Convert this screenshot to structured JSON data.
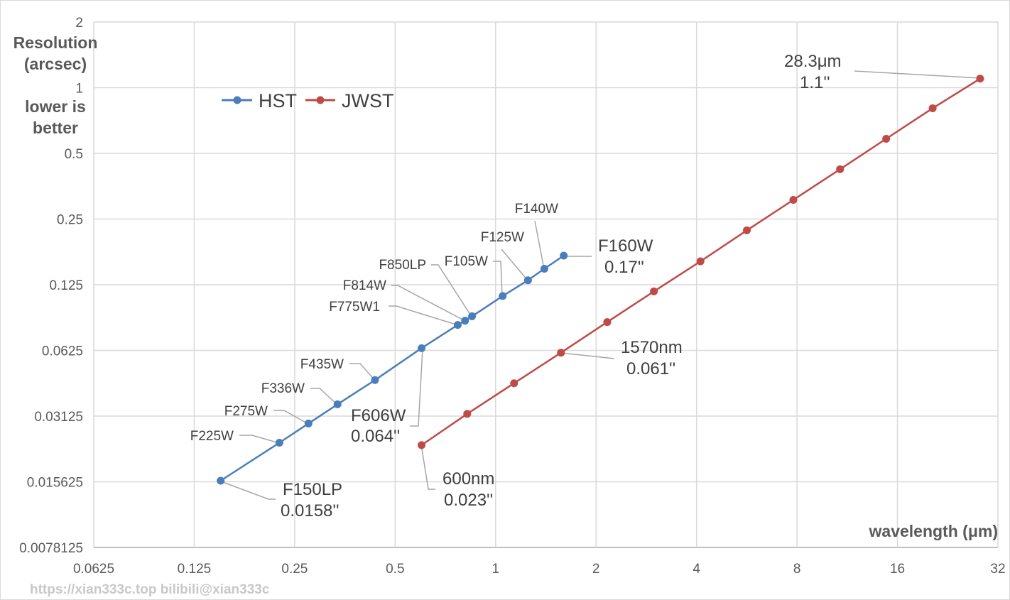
{
  "chart_data": {
    "type": "line",
    "title": "",
    "xlabel": "wavelength (μm)",
    "ylabel_lines": [
      "Resolution",
      "(arcsec)"
    ],
    "ylabel_note_lines": [
      "lower is",
      "better"
    ],
    "x_scale": "log2",
    "y_scale": "log2",
    "xlim": [
      0.0625,
      32
    ],
    "ylim": [
      0.0078125,
      2
    ],
    "x_ticks": [
      "0.0625",
      "0.125",
      "0.25",
      "0.5",
      "1",
      "2",
      "4",
      "8",
      "16",
      "32"
    ],
    "y_ticks": [
      "2",
      "1",
      "0.5",
      "0.25",
      "0.125",
      "0.0625",
      "0.03125",
      "0.015625",
      "0.0078125"
    ],
    "grid": true,
    "legend_position": "top-left",
    "series": [
      {
        "name": "HST",
        "color": "#4a7ebb",
        "points": [
          {
            "x": 0.15,
            "y": 0.0158,
            "label": [
              "F150LP",
              "0.0158''"
            ]
          },
          {
            "x": 0.225,
            "y": 0.0236,
            "label": [
              "F225W"
            ]
          },
          {
            "x": 0.275,
            "y": 0.0289,
            "label": [
              "F275W"
            ]
          },
          {
            "x": 0.336,
            "y": 0.0354,
            "label": [
              "F336W"
            ]
          },
          {
            "x": 0.435,
            "y": 0.0457,
            "label": [
              "F435W"
            ]
          },
          {
            "x": 0.6,
            "y": 0.064,
            "label": [
              "F606W",
              "0.064''"
            ]
          },
          {
            "x": 0.77,
            "y": 0.0818,
            "label": [
              "F775W1"
            ]
          },
          {
            "x": 0.81,
            "y": 0.0855,
            "label": [
              "F814W"
            ]
          },
          {
            "x": 0.85,
            "y": 0.0896,
            "label": [
              "F850LP"
            ]
          },
          {
            "x": 1.05,
            "y": 0.111,
            "label": [
              "F105W"
            ]
          },
          {
            "x": 1.25,
            "y": 0.131,
            "label": [
              "F125W"
            ]
          },
          {
            "x": 1.4,
            "y": 0.148,
            "label": [
              "F140W"
            ]
          },
          {
            "x": 1.6,
            "y": 0.17,
            "label": [
              "F160W",
              "0.17''"
            ]
          }
        ]
      },
      {
        "name": "JWST",
        "color": "#be4b48",
        "points": [
          {
            "x": 0.6,
            "y": 0.023,
            "label": [
              "600nm",
              "0.023''"
            ]
          },
          {
            "x": 0.822,
            "y": 0.032
          },
          {
            "x": 1.136,
            "y": 0.0442
          },
          {
            "x": 1.57,
            "y": 0.061,
            "label": [
              "1570nm",
              "0.061''"
            ]
          },
          {
            "x": 2.16,
            "y": 0.0843
          },
          {
            "x": 2.98,
            "y": 0.1165
          },
          {
            "x": 4.11,
            "y": 0.16
          },
          {
            "x": 5.66,
            "y": 0.222
          },
          {
            "x": 7.8,
            "y": 0.306
          },
          {
            "x": 10.77,
            "y": 0.423
          },
          {
            "x": 14.8,
            "y": 0.583
          },
          {
            "x": 20.4,
            "y": 0.805
          },
          {
            "x": 28.3,
            "y": 1.1,
            "label": [
              "28.3μm",
              "1.1''"
            ]
          }
        ]
      }
    ]
  },
  "watermark": "https://xian333c.top bilibili@xian333c"
}
